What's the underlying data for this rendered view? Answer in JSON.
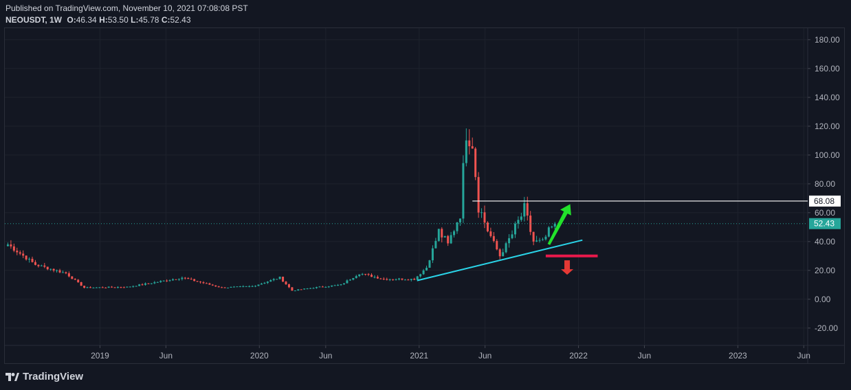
{
  "header": {
    "published": "Published on TradingView.com, November 10, 2021 07:08:08 PST",
    "symbol": "NEOUSDT, 1W",
    "o_label": "O:",
    "o_value": "46.34",
    "h_label": "H:",
    "h_value": "53.50",
    "l_label": "L:",
    "l_value": "45.78",
    "c_label": "C:",
    "c_value": "52.43"
  },
  "brand": {
    "name": "TradingView"
  },
  "colors": {
    "background": "#131722",
    "up": "#26a69a",
    "down": "#ef5350",
    "trendline": "#2ad4e8",
    "support": "#e8194b",
    "arrow_up": "#22e22b",
    "arrow_down": "#e53935",
    "resistance": "#ffffff"
  },
  "chart_data": {
    "type": "candlestick",
    "y_ticks": [
      "180.00",
      "160.00",
      "140.00",
      "120.00",
      "100.00",
      "80.00",
      "60.00",
      "40.00",
      "20.00",
      "0.00",
      "-20.00"
    ],
    "y_tick_values": [
      180,
      160,
      140,
      120,
      100,
      80,
      60,
      40,
      20,
      0,
      -20
    ],
    "x_ticks": [
      {
        "label": "2019",
        "date": "2019-01-01"
      },
      {
        "label": "Jun",
        "date": "2019-06-01"
      },
      {
        "label": "2020",
        "date": "2020-01-01"
      },
      {
        "label": "Jun",
        "date": "2020-06-01"
      },
      {
        "label": "2021",
        "date": "2021-01-01"
      },
      {
        "label": "Jun",
        "date": "2021-06-01"
      },
      {
        "label": "2022",
        "date": "2022-01-01"
      },
      {
        "label": "Jun",
        "date": "2022-06-01"
      },
      {
        "label": "2023",
        "date": "2023-01-01"
      },
      {
        "label": "Jun",
        "date": "2023-06-01"
      }
    ],
    "x_range": [
      "2018-05-28",
      "2023-06-10"
    ],
    "y_range": [
      -32,
      188
    ],
    "grid": true,
    "last_price_label": "52.43",
    "last_price": 52.43,
    "resistance_label": "68.08",
    "resistance_level": 68.08,
    "anchors": [
      {
        "date": "2018-06-04",
        "price": 38
      },
      {
        "date": "2018-08-06",
        "price": 24
      },
      {
        "date": "2018-10-15",
        "price": 18
      },
      {
        "date": "2018-11-26",
        "price": 8
      },
      {
        "date": "2019-03-04",
        "price": 8.5
      },
      {
        "date": "2019-05-13",
        "price": 12
      },
      {
        "date": "2019-07-08",
        "price": 15
      },
      {
        "date": "2019-10-07",
        "price": 8
      },
      {
        "date": "2019-12-16",
        "price": 9
      },
      {
        "date": "2020-02-17",
        "price": 15
      },
      {
        "date": "2020-03-16",
        "price": 6
      },
      {
        "date": "2020-05-04",
        "price": 8
      },
      {
        "date": "2020-07-06",
        "price": 10
      },
      {
        "date": "2020-08-17",
        "price": 18
      },
      {
        "date": "2020-10-12",
        "price": 14
      },
      {
        "date": "2020-12-21",
        "price": 14
      },
      {
        "date": "2021-01-18",
        "price": 22
      },
      {
        "date": "2021-02-15",
        "price": 47
      },
      {
        "date": "2021-03-08",
        "price": 38
      },
      {
        "date": "2021-04-05",
        "price": 60
      },
      {
        "date": "2021-04-19",
        "price": 118
      },
      {
        "date": "2021-05-03",
        "price": 110
      },
      {
        "date": "2021-05-17",
        "price": 65
      },
      {
        "date": "2021-06-07",
        "price": 48
      },
      {
        "date": "2021-07-05",
        "price": 30
      },
      {
        "date": "2021-08-02",
        "price": 45
      },
      {
        "date": "2021-08-30",
        "price": 62
      },
      {
        "date": "2021-09-20",
        "price": 40
      },
      {
        "date": "2021-10-11",
        "price": 40
      },
      {
        "date": "2021-11-08",
        "price": 52.43
      }
    ],
    "trendline": {
      "from": {
        "date": "2020-12-28",
        "price": 13
      },
      "to": {
        "date": "2022-01-10",
        "price": 41
      }
    },
    "support_line": {
      "from": {
        "date": "2021-10-18",
        "price": 30
      },
      "to": {
        "date": "2022-02-14",
        "price": 30
      }
    },
    "arrow_up": {
      "from": {
        "date": "2021-10-25",
        "price": 38
      },
      "to": {
        "date": "2021-12-13",
        "price": 66
      }
    },
    "arrow_down": {
      "from": {
        "date": "2021-12-06",
        "price": 27
      },
      "to": {
        "date": "2021-12-06",
        "price": 17
      }
    }
  }
}
